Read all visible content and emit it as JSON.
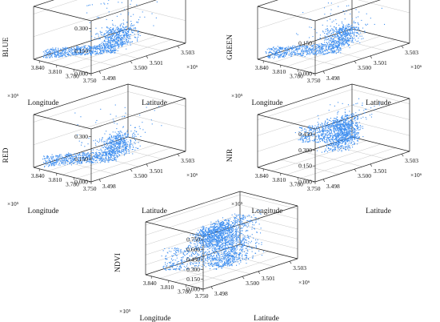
{
  "colors": {
    "points": "#3f8ff0",
    "axes": "#222222",
    "grid": "#c8c8c8",
    "background": "#ffffff"
  },
  "chart_data": [
    {
      "type": "scatter",
      "zlabel": "BLUE",
      "xlabel": "Longitude",
      "ylabel": "Latitude",
      "x_ticks": [
        "3.750",
        "3.780",
        "3.810",
        "3.840"
      ],
      "x_multiplier": "×10⁵",
      "y_ticks": [
        "3.498",
        "3.500",
        "3.501",
        "3.503"
      ],
      "y_multiplier": "×10⁶",
      "z_ticks": [
        "0.000",
        "0.150",
        "0.300"
      ],
      "z_range": [
        0,
        0.35
      ],
      "point_color": "#3f8ff0",
      "series": [
        {
          "shape": "cloud",
          "x": [
            3.78,
            3.82
          ],
          "y": [
            3.4995,
            3.5025
          ],
          "z": [
            0.02,
            0.14
          ],
          "points": 500
        },
        {
          "shape": "band",
          "x_from": 3.79,
          "x_to": 3.845,
          "y_from": 3.5005,
          "y_to": 3.498,
          "z": [
            0.0,
            0.06
          ],
          "points": 550
        },
        {
          "shape": "spikes",
          "x": [
            3.775,
            3.83
          ],
          "y": [
            3.499,
            3.503
          ],
          "z": [
            0.1,
            0.33
          ],
          "points": 70
        }
      ]
    },
    {
      "type": "scatter",
      "zlabel": "GREEN",
      "xlabel": "Longitude",
      "ylabel": "Latitude",
      "x_ticks": [
        "3.750",
        "3.780",
        "3.810",
        "3.840"
      ],
      "x_multiplier": "×10⁵",
      "y_ticks": [
        "3.498",
        "3.500",
        "3.501",
        "3.503"
      ],
      "y_multiplier": "×10⁶",
      "z_ticks": [
        "0.000",
        "0.150"
      ],
      "z_range": [
        0,
        0.26
      ],
      "point_color": "#3f8ff0",
      "series": [
        {
          "shape": "cloud",
          "x": [
            3.78,
            3.82
          ],
          "y": [
            3.4995,
            3.5025
          ],
          "z": [
            0.02,
            0.11
          ],
          "points": 500
        },
        {
          "shape": "band",
          "x_from": 3.79,
          "x_to": 3.845,
          "y_from": 3.5005,
          "y_to": 3.498,
          "z": [
            0.0,
            0.05
          ],
          "points": 550
        },
        {
          "shape": "spikes",
          "x": [
            3.775,
            3.83
          ],
          "y": [
            3.499,
            3.503
          ],
          "z": [
            0.08,
            0.25
          ],
          "points": 70
        }
      ]
    },
    {
      "type": "scatter",
      "zlabel": "RED",
      "xlabel": "Longitude",
      "ylabel": "Latitude",
      "x_ticks": [
        "3.750",
        "3.780",
        "3.810",
        "3.840"
      ],
      "x_multiplier": "×10⁵",
      "y_ticks": [
        "3.498",
        "3.500",
        "3.501",
        "3.503"
      ],
      "y_multiplier": "×10⁶",
      "z_ticks": [
        "0.000",
        "0.150",
        "0.300"
      ],
      "z_range": [
        0,
        0.35
      ],
      "point_color": "#3f8ff0",
      "series": [
        {
          "shape": "cloud",
          "x": [
            3.78,
            3.82
          ],
          "y": [
            3.4995,
            3.5025
          ],
          "z": [
            0.02,
            0.15
          ],
          "points": 500
        },
        {
          "shape": "band",
          "x_from": 3.79,
          "x_to": 3.845,
          "y_from": 3.5005,
          "y_to": 3.498,
          "z": [
            0.0,
            0.07
          ],
          "points": 550
        },
        {
          "shape": "spikes",
          "x": [
            3.775,
            3.83
          ],
          "y": [
            3.499,
            3.503
          ],
          "z": [
            0.1,
            0.33
          ],
          "points": 70
        }
      ]
    },
    {
      "type": "scatter",
      "zlabel": "NIR",
      "xlabel": "Longitude",
      "ylabel": "Latitude",
      "x_ticks": [
        "3.750",
        "3.780",
        "3.810",
        "3.840"
      ],
      "x_multiplier": "×10⁵",
      "y_ticks": [
        "3.498",
        "3.500",
        "3.501",
        "3.503"
      ],
      "y_multiplier": "×10⁶",
      "z_ticks": [
        "0.000",
        "0.150",
        "0.300",
        "0.450"
      ],
      "z_range": [
        0,
        0.5
      ],
      "point_color": "#3f8ff0",
      "series": [
        {
          "shape": "cloud",
          "x": [
            3.78,
            3.82
          ],
          "y": [
            3.4995,
            3.5025
          ],
          "z": [
            0.08,
            0.38
          ],
          "points": 650
        },
        {
          "shape": "band",
          "x_from": 3.8,
          "x_to": 3.845,
          "y_from": 3.502,
          "y_to": 3.5,
          "z": [
            0.12,
            0.28
          ],
          "points": 550
        },
        {
          "shape": "spikes",
          "x": [
            3.785,
            3.825
          ],
          "y": [
            3.5,
            3.503
          ],
          "z": [
            0.3,
            0.47
          ],
          "points": 80
        }
      ]
    },
    {
      "type": "scatter",
      "zlabel": "NDVI",
      "xlabel": "Longitude",
      "ylabel": "Latitude",
      "x_ticks": [
        "3.750",
        "3.780",
        "3.810",
        "3.840"
      ],
      "x_multiplier": "×10⁵",
      "y_ticks": [
        "3.498",
        "3.500",
        "3.501",
        "3.503"
      ],
      "y_multiplier": "×10⁶",
      "z_ticks": [
        "0.000",
        "0.150",
        "0.300",
        "0.450",
        "0.600",
        "0.750"
      ],
      "z_range": [
        0,
        0.8
      ],
      "point_color": "#3f8ff0",
      "series": [
        {
          "shape": "cloud",
          "x": [
            3.775,
            3.805
          ],
          "y": [
            3.4985,
            3.503
          ],
          "z": [
            0.05,
            0.75
          ],
          "points": 900
        },
        {
          "shape": "cloud",
          "x": [
            3.8,
            3.84
          ],
          "y": [
            3.499,
            3.5025
          ],
          "z": [
            0.3,
            0.55
          ],
          "points": 700
        },
        {
          "shape": "band",
          "x_from": 3.79,
          "x_to": 3.845,
          "y_from": 3.501,
          "y_to": 3.4985,
          "z": [
            0.0,
            0.35
          ],
          "points": 500
        }
      ]
    }
  ]
}
